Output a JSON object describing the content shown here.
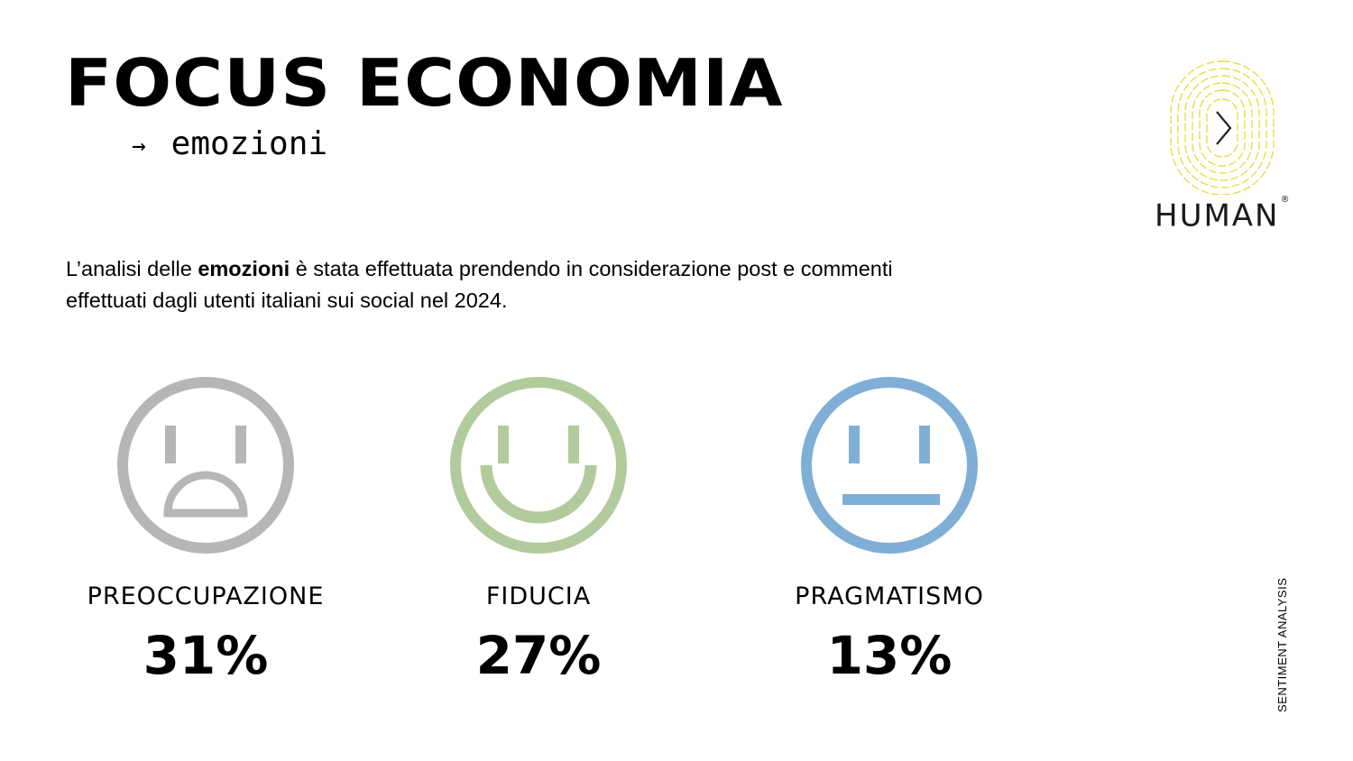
{
  "header": {
    "title": "FOCUS ECONOMIA",
    "subtitle": "emozioni"
  },
  "intro": {
    "before": "L’analisi delle ",
    "bold": "emozioni",
    "after": " è stata effettuata prendendo in considerazione post e commenti effettuati dagli utenti italiani sui social nel 2024."
  },
  "logo": {
    "word": "HUMAN",
    "mark": "®",
    "color": "#e6de4a"
  },
  "side_label": "SENTIMENT ANALYSIS",
  "emotions": [
    {
      "label": "PREOCCUPAZIONE",
      "value": "31%",
      "icon": "sad-face-icon",
      "color": "#b6b6b6"
    },
    {
      "label": "FIDUCIA",
      "value": "27%",
      "icon": "happy-face-icon",
      "color": "#b2cb9c"
    },
    {
      "label": "PRAGMATISMO",
      "value": "13%",
      "icon": "neutral-face-icon",
      "color": "#7fafd6"
    }
  ]
}
